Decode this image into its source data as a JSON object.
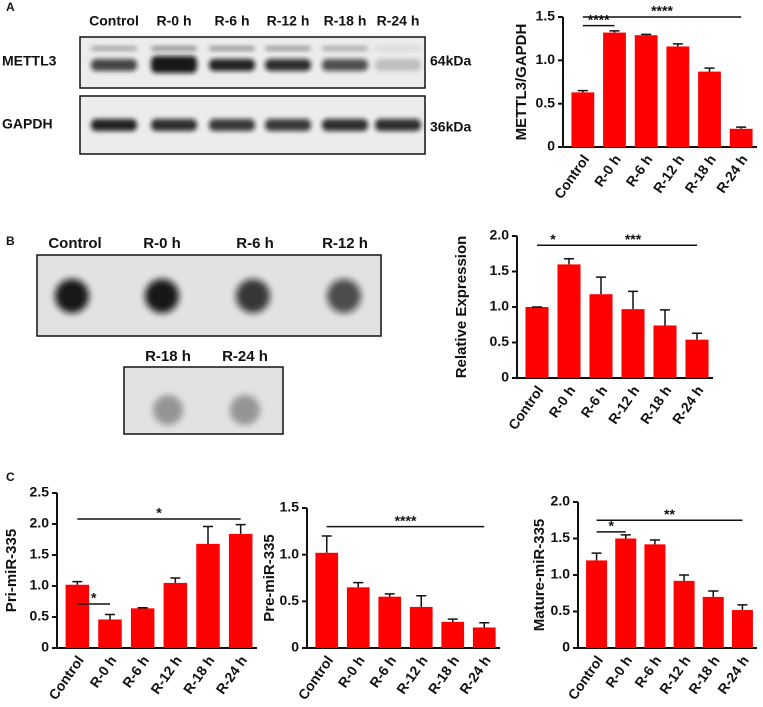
{
  "panel_labels": [
    "A",
    "B",
    "C"
  ],
  "western_blot": {
    "lanes": [
      "Control",
      "R-0 h",
      "R-6 h",
      "R-12 h",
      "R-18 h",
      "R-24 h"
    ],
    "rows": [
      {
        "protein": "METTL3",
        "size": "64kDa"
      },
      {
        "protein": "GAPDH",
        "size": "36kDa"
      }
    ]
  },
  "dot_blot": {
    "lanes_top": [
      "Control",
      "R-0 h",
      "R-6 h",
      "R-12 h"
    ],
    "lanes_bottom": [
      "R-18 h",
      "R-24 h"
    ]
  },
  "chart_data": [
    {
      "type": "bar",
      "y_label": "METTL3/GAPDH",
      "categories": [
        "Control",
        "R-0 h",
        "R-6 h",
        "R-12 h",
        "R-18 h",
        "R-24 h"
      ],
      "values": [
        0.63,
        1.32,
        1.29,
        1.16,
        0.87,
        0.21
      ],
      "errors": [
        0.02,
        0.02,
        0.01,
        0.03,
        0.04,
        0.02
      ],
      "color": "#ff0000",
      "ylim": [
        0,
        1.5
      ],
      "yticks": [
        0,
        0.5,
        {
          "value": 1,
          "label": "1.0"
        },
        1.5
      ],
      "annotations": [
        "****",
        "****"
      ]
    },
    {
      "type": "bar",
      "y_label": "Relative Expression",
      "categories": [
        "Control",
        "R-0 h",
        "R-6 h",
        "R-12 h",
        "R-18 h",
        "R-24 h"
      ],
      "values": [
        1.0,
        1.6,
        1.18,
        0.97,
        0.74,
        0.54
      ],
      "errors": [
        0,
        0.08,
        0.24,
        0.25,
        0.22,
        0.09
      ],
      "color": "#ff0000",
      "ylim": [
        0,
        2
      ],
      "yticks": [
        0,
        0.5,
        {
          "value": 1,
          "label": "1.0"
        },
        1.5,
        {
          "value": 2,
          "label": "2.0"
        }
      ],
      "annotations": [
        "*",
        "***"
      ]
    },
    {
      "type": "bar",
      "y_label": "Pri-miR-335",
      "categories": [
        "Control",
        "R-0 h",
        "R-6 h",
        "R-12 h",
        "R-18 h",
        "R-24 h"
      ],
      "values": [
        1.02,
        0.46,
        0.64,
        1.05,
        1.68,
        1.84
      ],
      "errors": [
        0.05,
        0.08,
        0.01,
        0.08,
        0.28,
        0.15
      ],
      "color": "#ff0000",
      "ylim": [
        0,
        2.5
      ],
      "yticks": [
        0,
        0.5,
        {
          "value": 1,
          "label": "1.0"
        },
        1.5,
        {
          "value": 2,
          "label": "2.0"
        },
        2.5
      ],
      "annotations": [
        "*",
        "*"
      ]
    },
    {
      "type": "bar",
      "y_label": "Pre-miR-335",
      "categories": [
        "Control",
        "R-0 h",
        "R-6 h",
        "R-12 h",
        "R-18 h",
        "R-24 h"
      ],
      "values": [
        1.02,
        0.65,
        0.55,
        0.44,
        0.28,
        0.22
      ],
      "errors": [
        0.18,
        0.05,
        0.03,
        0.12,
        0.03,
        0.05
      ],
      "color": "#ff0000",
      "ylim": [
        0,
        1.5
      ],
      "yticks": [
        0,
        0.5,
        {
          "value": 1,
          "label": "1.0"
        },
        1.5
      ],
      "annotations": [
        "****"
      ]
    },
    {
      "type": "bar",
      "y_label": "Mature-miR-335",
      "categories": [
        "Control",
        "R-0 h",
        "R-6 h",
        "R-12 h",
        "R-18 h",
        "R-24 h"
      ],
      "values": [
        1.2,
        1.5,
        1.42,
        0.92,
        0.7,
        0.52
      ],
      "errors": [
        0.1,
        0.05,
        0.06,
        0.08,
        0.08,
        0.07
      ],
      "color": "#ff0000",
      "ylim": [
        0,
        2
      ],
      "yticks": [
        0,
        0.5,
        {
          "value": 1,
          "label": "1.0"
        },
        1.5,
        {
          "value": 2,
          "label": "2.0"
        }
      ],
      "annotations": [
        "*",
        "**"
      ]
    }
  ]
}
